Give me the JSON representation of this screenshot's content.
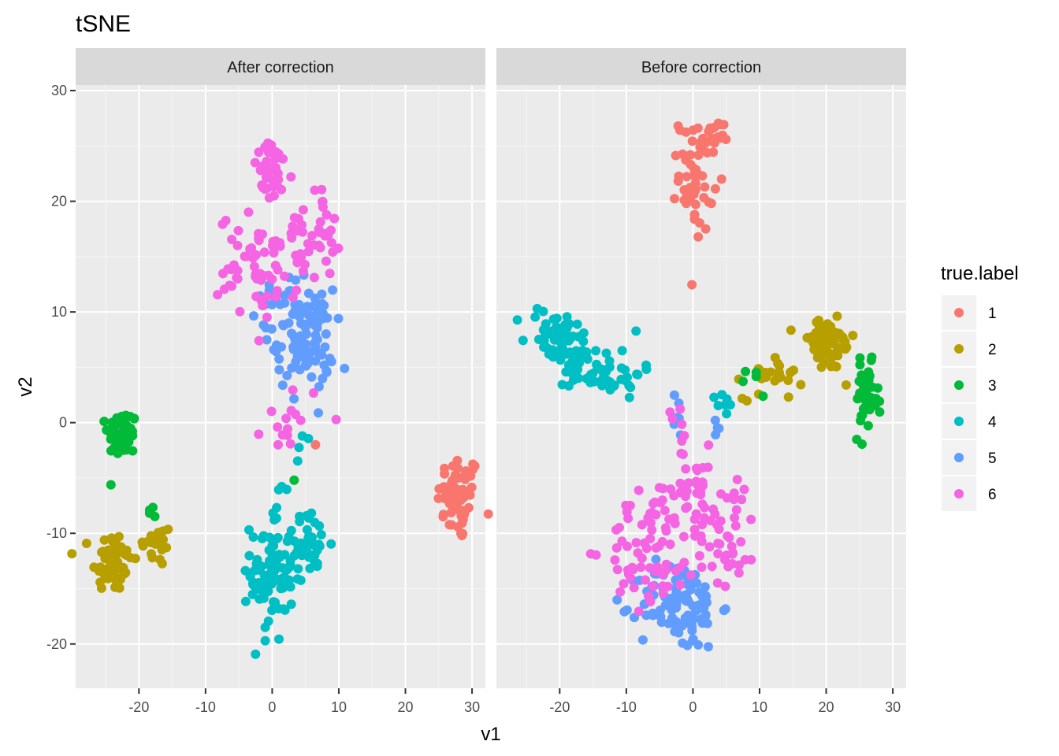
{
  "chart_data": {
    "type": "scatter",
    "title": "tSNE",
    "xlabel": "v1",
    "ylabel": "v2",
    "xlim": [
      -29.5,
      32
    ],
    "ylim": [
      -24,
      30.5
    ],
    "x_ticks": [
      -20,
      -10,
      0,
      10,
      20,
      30
    ],
    "y_ticks": [
      -20,
      -10,
      0,
      10,
      20,
      30
    ],
    "grid": true,
    "legend_title": "true.label",
    "legend_position": "right",
    "colors": {
      "1": "#F8766D",
      "2": "#B79F00",
      "3": "#00BA38",
      "4": "#00BFC4",
      "5": "#619CFF",
      "6": "#F564E3"
    },
    "series_names": [
      "1",
      "2",
      "3",
      "4",
      "5",
      "6"
    ],
    "panels": [
      {
        "strip": "After correction",
        "clusters": [
          {
            "label": "1",
            "cx": 28,
            "cy": -6.8,
            "sx": 1.6,
            "sy": 2.0,
            "n": 60
          },
          {
            "label": "2",
            "cx": -24,
            "cy": -12.5,
            "sx": 1.5,
            "sy": 1.4,
            "n": 60
          },
          {
            "label": "2",
            "cx": -17.5,
            "cy": -11,
            "sx": 1.3,
            "sy": 1.0,
            "n": 25
          },
          {
            "label": "3",
            "cx": -22.5,
            "cy": -1,
            "sx": 1.1,
            "sy": 1.1,
            "n": 55
          },
          {
            "label": "3",
            "cx": -18,
            "cy": -8,
            "sx": 0.5,
            "sy": 0.6,
            "n": 4
          },
          {
            "label": "4",
            "cx": 0,
            "cy": -13.5,
            "sx": 1.6,
            "sy": 3.2,
            "n": 90
          },
          {
            "label": "4",
            "cx": 5.5,
            "cy": -11,
            "sx": 1.6,
            "sy": 1.4,
            "n": 35
          },
          {
            "label": "4",
            "cx": 4.5,
            "cy": -1.5,
            "sx": 0.6,
            "sy": 1.0,
            "n": 4
          },
          {
            "label": "5",
            "cx": 5,
            "cy": 7.5,
            "sx": 2.1,
            "sy": 2.3,
            "n": 100
          },
          {
            "label": "5",
            "cx": 0.5,
            "cy": 10.5,
            "sx": 1.4,
            "sy": 1.2,
            "n": 20
          },
          {
            "label": "6",
            "cx": 0,
            "cy": 22.5,
            "sx": 1.6,
            "sy": 1.3,
            "n": 40
          },
          {
            "label": "6",
            "cx": -2,
            "cy": 14,
            "sx": 3.0,
            "sy": 2.4,
            "n": 60
          },
          {
            "label": "6",
            "cx": 6,
            "cy": 17,
            "sx": 2.0,
            "sy": 2.0,
            "n": 40
          },
          {
            "label": "6",
            "cx": 3,
            "cy": 0.5,
            "sx": 2.2,
            "sy": 1.6,
            "n": 15
          },
          {
            "label": "3",
            "cx": 3.3,
            "cy": -5.2,
            "sx": 0.2,
            "sy": 0.2,
            "n": 1
          },
          {
            "label": "1",
            "cx": 6.5,
            "cy": -2,
            "sx": 0.2,
            "sy": 0.2,
            "n": 1
          }
        ]
      },
      {
        "strip": "Before correction",
        "clusters": [
          {
            "label": "1",
            "cx": 0.5,
            "cy": 22.5,
            "sx": 1.3,
            "sy": 2.6,
            "n": 55
          },
          {
            "label": "1",
            "cx": 3,
            "cy": 25.5,
            "sx": 0.8,
            "sy": 0.9,
            "n": 15
          },
          {
            "label": "2",
            "cx": 20,
            "cy": 7,
            "sx": 2.2,
            "sy": 1.2,
            "n": 60
          },
          {
            "label": "2",
            "cx": 12,
            "cy": 4.5,
            "sx": 2.2,
            "sy": 1.2,
            "n": 25
          },
          {
            "label": "3",
            "cx": 26,
            "cy": 2,
            "sx": 0.9,
            "sy": 1.6,
            "n": 40
          },
          {
            "label": "3",
            "cx": 9,
            "cy": 4,
            "sx": 1.2,
            "sy": 1.0,
            "n": 5
          },
          {
            "label": "4",
            "cx": -21,
            "cy": 8,
            "sx": 2.1,
            "sy": 1.3,
            "n": 45
          },
          {
            "label": "4",
            "cx": -13,
            "cy": 4.5,
            "sx": 2.7,
            "sy": 1.1,
            "n": 45
          },
          {
            "label": "4",
            "cx": -17,
            "cy": 6.5,
            "sx": 1.3,
            "sy": 1.2,
            "n": 20
          },
          {
            "label": "4",
            "cx": 5,
            "cy": 1.5,
            "sx": 0.8,
            "sy": 0.6,
            "n": 8
          },
          {
            "label": "5",
            "cx": -2,
            "cy": -16.5,
            "sx": 3.0,
            "sy": 2.0,
            "n": 110
          },
          {
            "label": "5",
            "cx": -2.5,
            "cy": 0.5,
            "sx": 0.6,
            "sy": 1.0,
            "n": 6
          },
          {
            "label": "5",
            "cx": 3.5,
            "cy": -0.5,
            "sx": 0.5,
            "sy": 0.6,
            "n": 4
          },
          {
            "label": "6",
            "cx": -6,
            "cy": -11.5,
            "sx": 3.5,
            "sy": 2.6,
            "n": 70
          },
          {
            "label": "6",
            "cx": 5,
            "cy": -9.5,
            "sx": 2.3,
            "sy": 2.6,
            "n": 45
          },
          {
            "label": "6",
            "cx": -0.5,
            "cy": -6,
            "sx": 2.0,
            "sy": 2.0,
            "n": 35
          },
          {
            "label": "6",
            "cx": -2,
            "cy": 0,
            "sx": 0.8,
            "sy": 1.2,
            "n": 6
          }
        ]
      }
    ]
  }
}
